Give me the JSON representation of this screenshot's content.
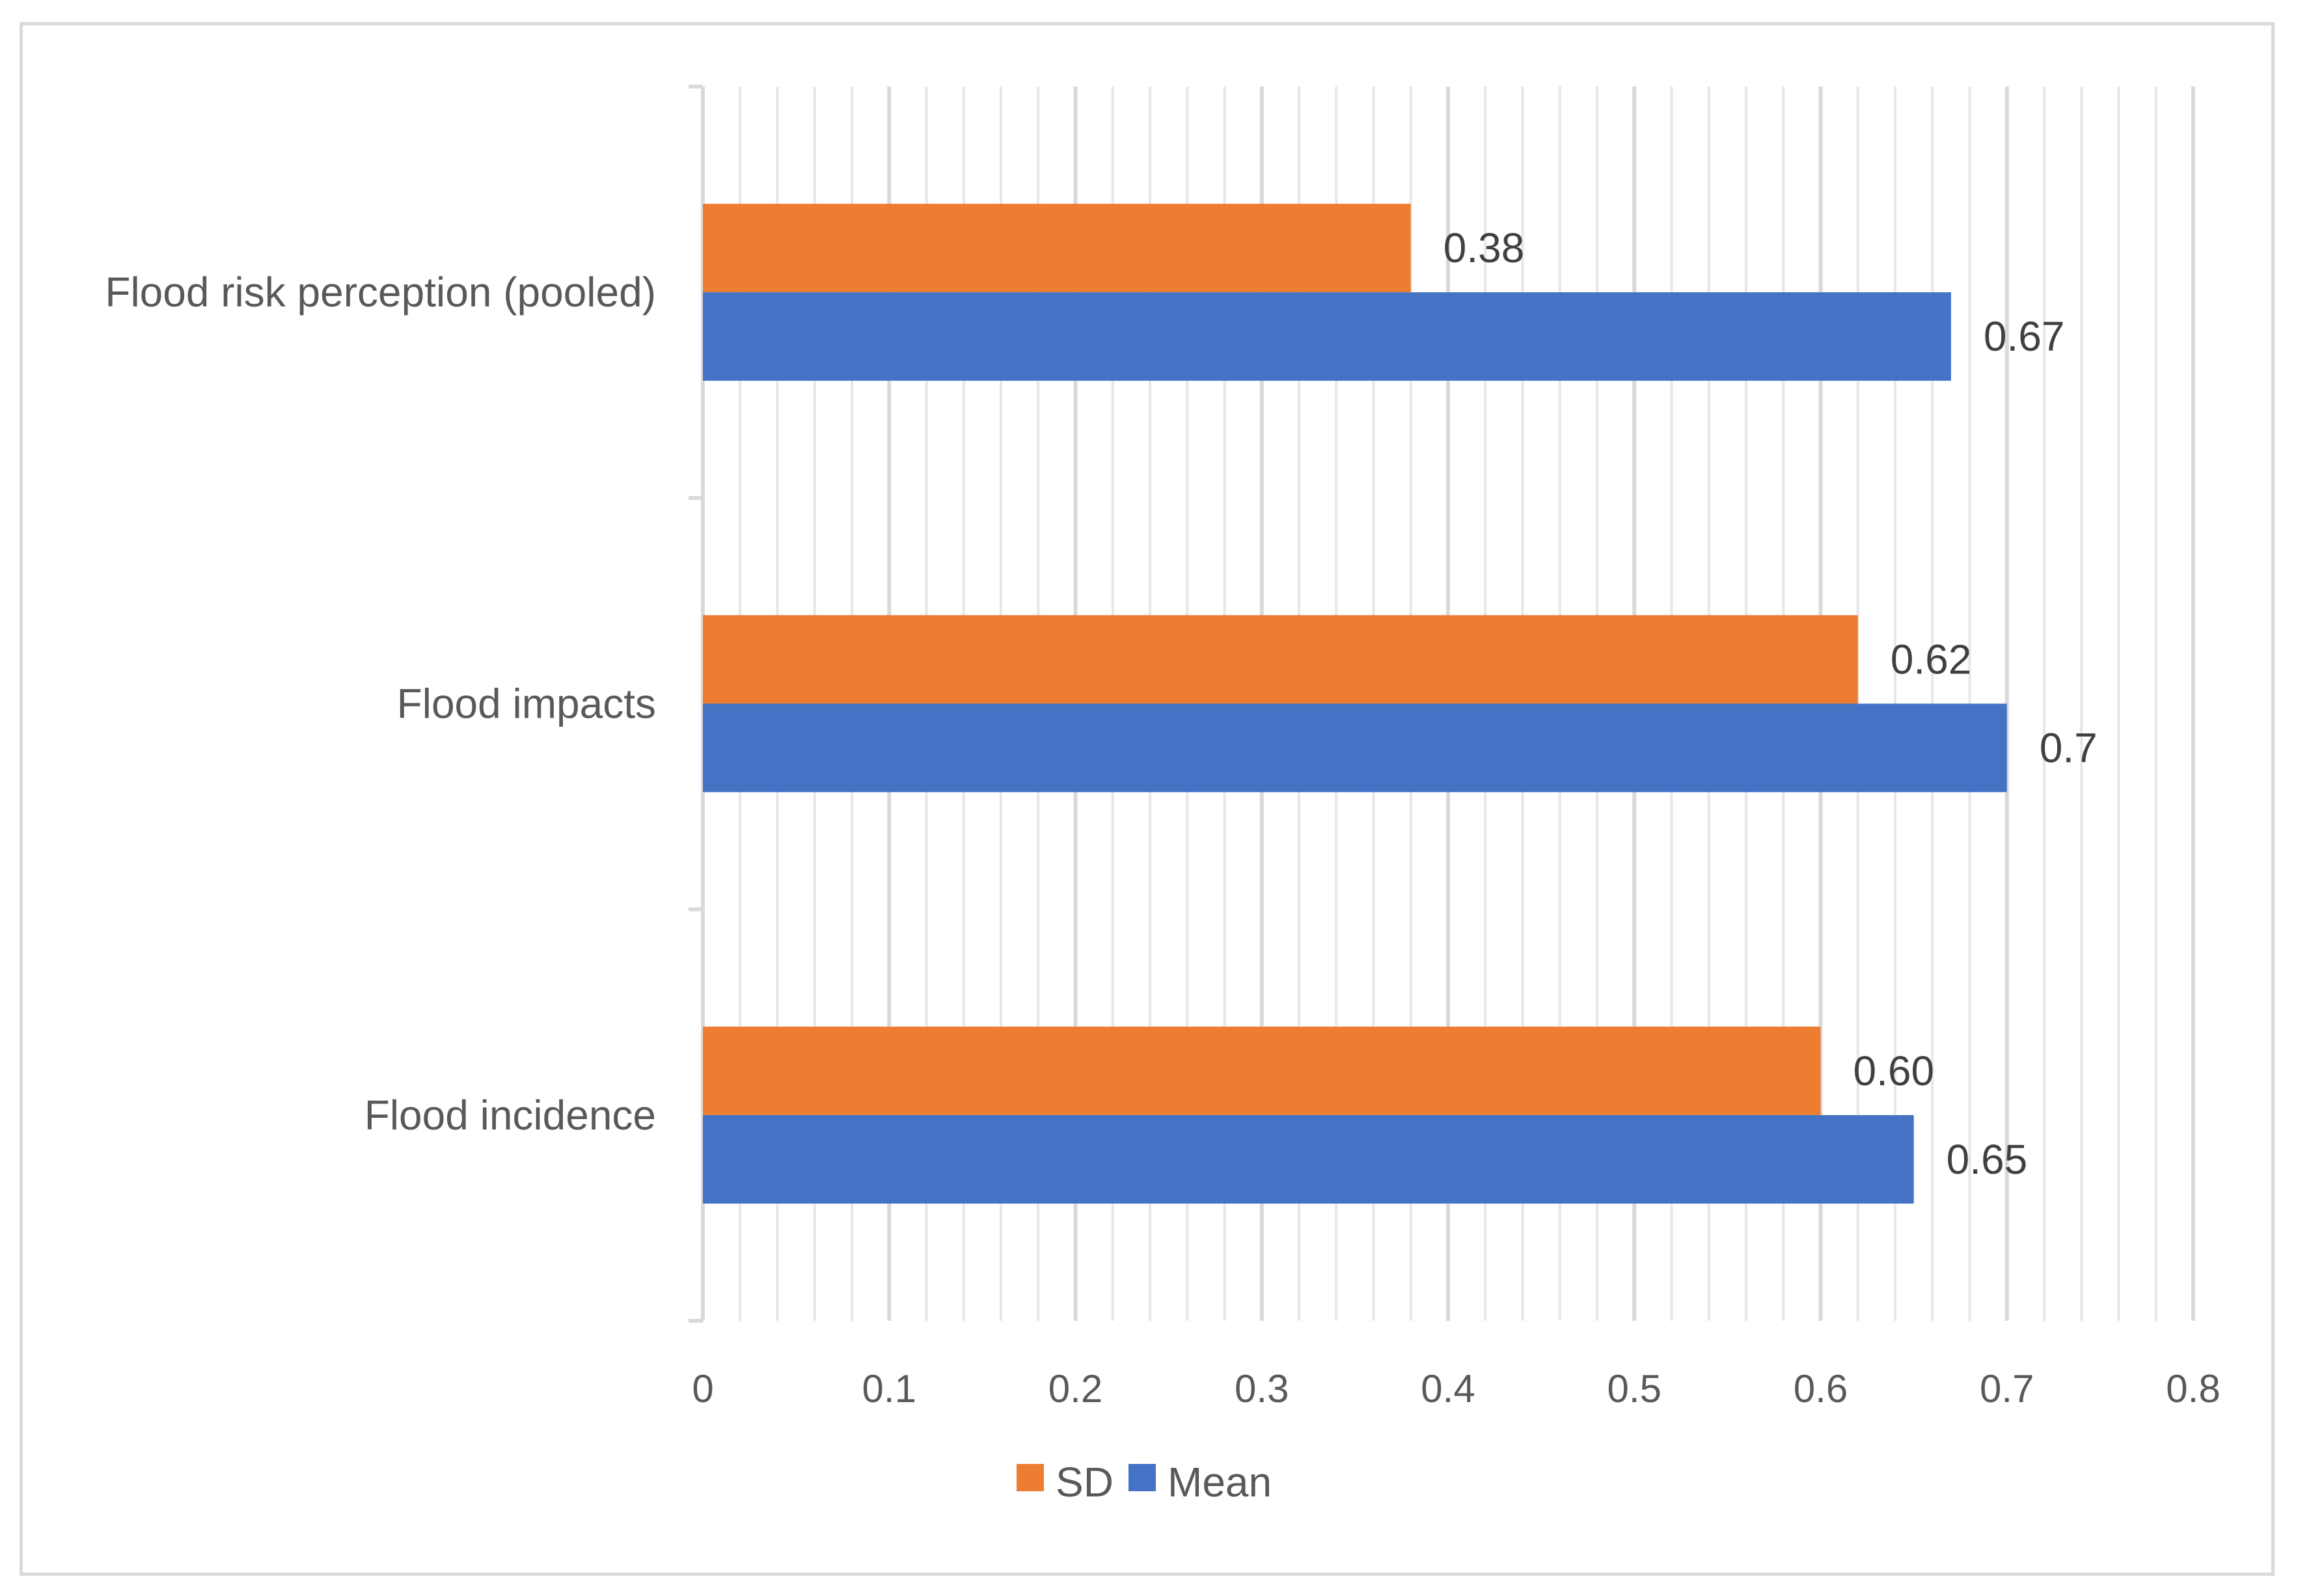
{
  "chart_data": {
    "type": "bar",
    "orientation": "horizontal",
    "title": "",
    "xlabel": "",
    "ylabel": "",
    "categories": [
      "Flood risk perception (pooled)",
      "Flood impacts",
      "Flood incidence"
    ],
    "series": [
      {
        "name": "SD",
        "color": "#ed7d31",
        "values": [
          0.38,
          0.62,
          0.6
        ],
        "data_labels": [
          "0.38",
          "0.62",
          "0.60"
        ]
      },
      {
        "name": "Mean",
        "color": "#4472c4",
        "values": [
          0.67,
          0.7,
          0.65
        ],
        "data_labels": [
          "0.67",
          "0.7",
          "0.65"
        ]
      }
    ],
    "xlim": [
      0,
      0.8
    ],
    "x_ticks": [
      "0",
      "0.1",
      "0.2",
      "0.3",
      "0.4",
      "0.5",
      "0.6",
      "0.7",
      "0.8"
    ],
    "grid": true,
    "legend": {
      "position": "bottom",
      "entries": [
        "SD",
        "Mean"
      ]
    }
  }
}
